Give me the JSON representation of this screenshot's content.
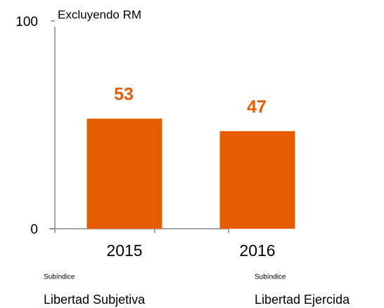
{
  "chart_data": {
    "type": "bar",
    "subtitle": "Excluyendo RM",
    "categories": [
      "2015",
      "2016"
    ],
    "values": [
      53,
      47
    ],
    "color": "#e65c00",
    "ylim": [
      0,
      100
    ],
    "yticks": [
      0,
      100
    ],
    "footer_labels": [
      {
        "small": "Subíndice",
        "label": "Libertad Subjetiva"
      },
      {
        "small": "Subíndice",
        "label": "Libertad Ejercida"
      }
    ]
  }
}
